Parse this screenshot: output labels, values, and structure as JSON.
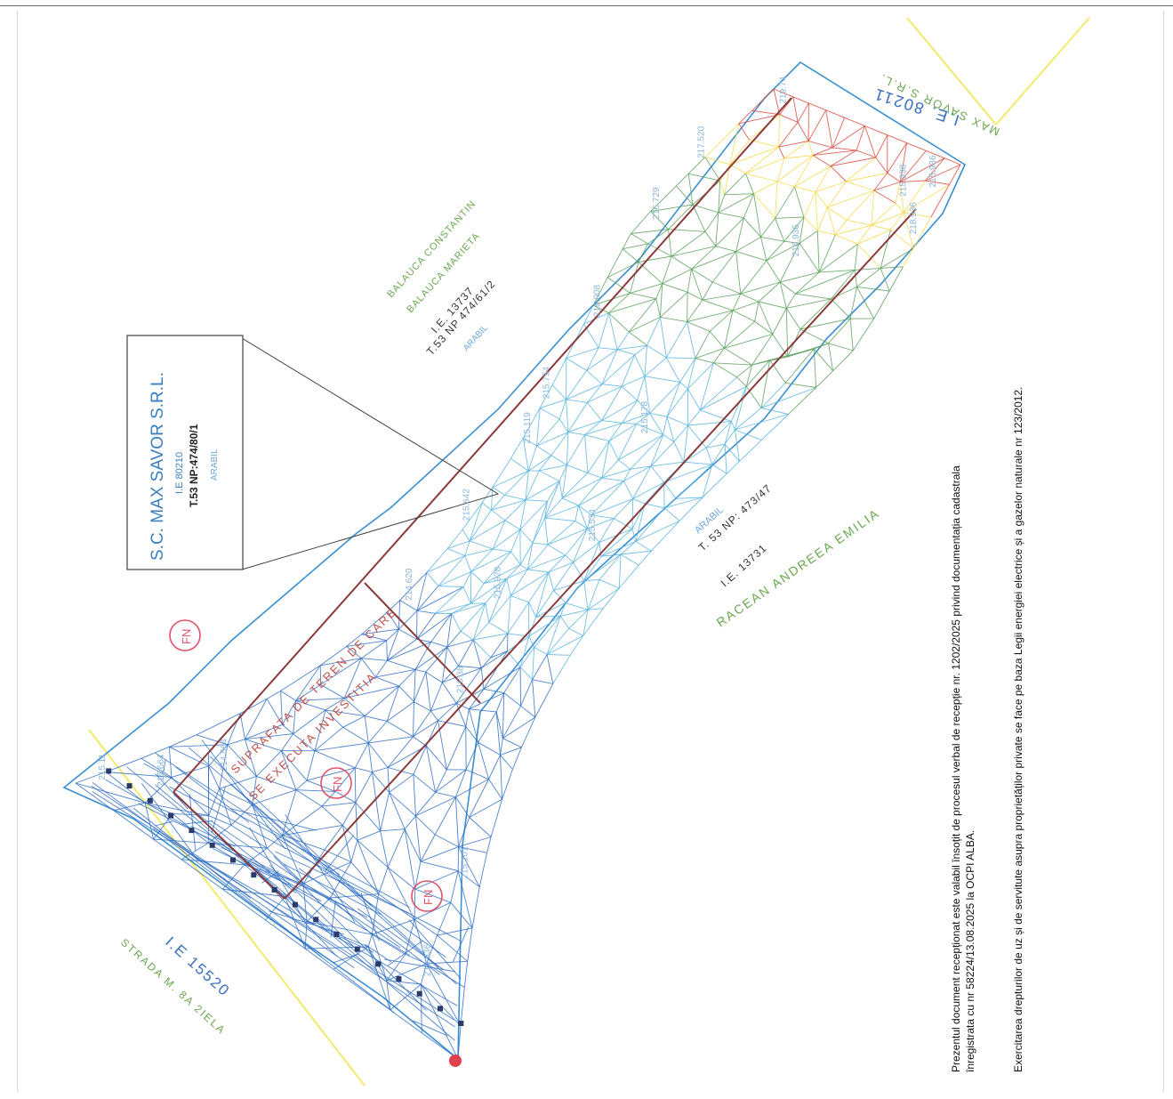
{
  "owner_box": {
    "name": "S.C. MAX SAVOR S.R.L.",
    "ie": "I.E 80210",
    "parcel": "T.53 NP:474/80/1",
    "use": "ARABIL"
  },
  "neighbors": {
    "north": {
      "owner1": "BALAUCA CONSTANTIN",
      "owner2": "BALAUCA MARIETA",
      "ie": "I.E. 13737",
      "parcel": "T.53 NP 474/61/2",
      "use": "ARABIL"
    },
    "south": {
      "use": "ARABIL",
      "parcel": "T. 53 NP: 473/47",
      "ie": "I.E. 13731",
      "owner": "RACEAN ANDREEA EMILIA"
    },
    "street": {
      "ie": "I.E 15520",
      "name": "STRADA M. 8A 2IELA"
    },
    "northeast": {
      "ie": "I.E. 80211",
      "name": "MAX SAVOR S.R.L."
    }
  },
  "annotations": {
    "fn": [
      "FN",
      "FN",
      "FN"
    ],
    "red_text1": "SUPRAFATA DE TEREN DE CARE",
    "red_text2": "SE EXECUTA INVESTITIA"
  },
  "elevations": [
    "215.119",
    "215.664",
    "215.642",
    "214.564",
    "215.928",
    "215.178",
    "215.936",
    "217.520",
    "219.74",
    "216.936",
    "215.938",
    "216.729",
    "216.008",
    "215.754",
    "214.620",
    "215.534",
    "216.38",
    "215.836",
    "218.936",
    "215.101",
    "215.11"
  ],
  "notes": {
    "line1": "Prezentul document recepționat este valabil însoțit de procesul verbal de recepție nr. 1202/2025  privind  documentația cadastrala",
    "line2": "înregistrata cu nr 58224/13.08.2025 la OCPI ALBA.",
    "line3": "Exercitarea drepturilor de uz și de servitute asupra proprietăților private se face pe baza Legii energiei electrice și a gazelor naturale nr 123/2012."
  },
  "colors": {
    "low": "#2f6fc4",
    "mid": "#58b4e0",
    "green": "#5aa05a",
    "yellow": "#f5d94a",
    "high": "#d9463b",
    "parcel_line": "#8b3a3a",
    "fn_circle": "#e0506a"
  }
}
